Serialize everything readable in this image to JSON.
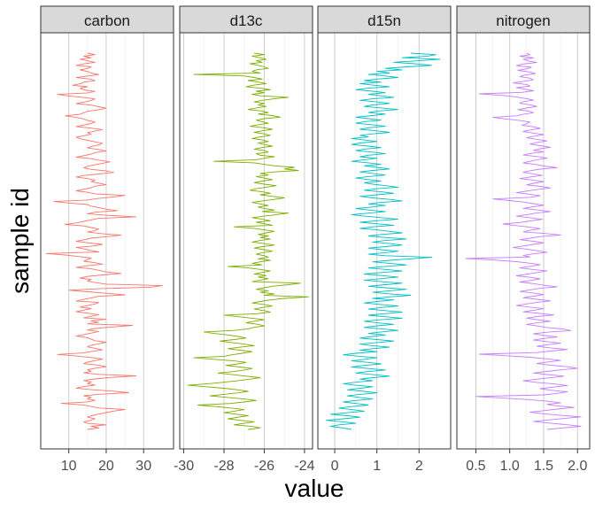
{
  "chart_data": {
    "type": "line",
    "xlabel": "value",
    "ylabel": "sample id",
    "orientation": "vertical profile (value on x, sample id on y)",
    "facets": [
      {
        "name": "carbon",
        "color": "#F8766D",
        "xlim": [
          2.5,
          38
        ],
        "ticks": [
          10,
          20,
          30
        ],
        "tick_labels": [
          "10",
          "20",
          "30"
        ],
        "values": [
          15,
          17,
          14,
          16,
          13,
          15,
          17,
          14,
          12,
          16,
          15,
          13,
          15,
          16,
          18,
          15,
          12,
          16,
          17,
          14,
          13,
          11,
          15,
          13,
          14,
          17,
          15,
          7,
          10,
          14,
          17,
          16,
          14,
          12,
          16,
          18,
          20,
          18,
          15,
          14,
          13,
          9,
          12,
          14,
          15,
          17,
          16,
          14,
          12,
          16,
          19,
          17,
          15,
          16,
          14,
          12,
          13,
          15,
          17,
          19,
          18,
          16,
          15,
          18,
          20,
          17,
          16,
          14,
          12,
          16,
          18,
          21,
          19,
          17,
          15,
          14,
          16,
          20,
          22,
          18,
          14,
          12,
          15,
          17,
          16,
          18,
          20,
          17,
          16,
          14,
          12,
          15,
          17,
          25,
          22,
          18,
          15,
          6,
          10,
          15,
          16,
          18,
          20,
          23,
          17,
          15,
          20,
          28,
          18,
          16,
          14,
          12,
          9,
          14,
          16,
          18,
          17,
          15,
          19,
          24,
          20,
          16,
          14,
          12,
          15,
          19,
          17,
          12,
          14,
          16,
          18,
          4,
          9,
          13,
          16,
          15,
          14,
          17,
          19,
          15,
          12,
          16,
          18,
          20,
          24,
          19,
          15,
          13,
          16,
          15,
          17,
          20,
          35,
          32,
          18,
          10,
          15,
          20,
          25,
          18,
          16,
          14,
          12,
          18,
          17,
          15,
          13,
          16,
          14,
          12,
          15,
          18,
          16,
          14,
          20,
          16,
          18,
          15,
          27,
          22,
          17,
          15,
          18,
          16,
          14,
          12,
          15,
          16,
          17,
          20,
          18,
          16,
          15,
          17,
          19,
          16,
          14,
          7,
          12,
          16,
          19,
          17,
          15,
          14,
          18,
          20,
          17,
          15,
          16,
          14,
          18,
          28,
          21,
          17,
          14,
          16,
          15,
          17,
          14,
          12,
          16,
          22,
          26,
          18,
          14,
          16,
          15,
          17,
          15,
          8,
          14,
          16,
          18,
          25,
          22,
          20,
          18,
          16,
          15,
          17,
          16,
          14,
          15,
          20,
          16,
          18,
          15
        ]
      },
      {
        "name": "d13c",
        "color": "#7CAE00",
        "xlim": [
          -30.2,
          -23.6
        ],
        "ticks": [
          -30,
          -28,
          -26,
          -24
        ],
        "tick_labels": [
          "-30",
          "-28",
          "-26",
          "-24"
        ],
        "values": [
          -26.5,
          -26.0,
          -26.6,
          -26.2,
          -25.9,
          -26.4,
          -26.1,
          -26.7,
          -26.3,
          -26.0,
          -25.8,
          -26.4,
          -26.6,
          -26.2,
          -29.5,
          -27.0,
          -26.5,
          -26.1,
          -26.8,
          -26.3,
          -25.9,
          -26.5,
          -26.9,
          -26.2,
          -25.7,
          -26.4,
          -26.0,
          -26.6,
          -26.2,
          -24.8,
          -25.5,
          -26.1,
          -26.5,
          -26.0,
          -26.3,
          -25.9,
          -26.4,
          -26.8,
          -26.1,
          -25.8,
          -26.3,
          -25.6,
          -25.2,
          -26.0,
          -26.4,
          -26.1,
          -25.8,
          -26.3,
          -26.7,
          -26.0,
          -25.6,
          -26.1,
          -26.5,
          -26.0,
          -25.7,
          -26.2,
          -26.6,
          -26.1,
          -25.8,
          -26.3,
          -26.0,
          -25.6,
          -26.1,
          -26.5,
          -26.0,
          -25.8,
          -26.4,
          -26.2,
          -25.5,
          -26.0,
          -26.4,
          -28.5,
          -26.5,
          -26.0,
          -25.5,
          -24.5,
          -25.0,
          -24.3,
          -25.5,
          -26.2,
          -25.8,
          -26.4,
          -26.0,
          -25.6,
          -26.1,
          -26.5,
          -26.0,
          -25.4,
          -25.9,
          -26.4,
          -26.7,
          -26.1,
          -25.7,
          -26.2,
          -25.6,
          -25.0,
          -25.5,
          -26.1,
          -26.6,
          -26.2,
          -25.8,
          -26.3,
          -26.0,
          -25.5,
          -26.1,
          -24.8,
          -25.4,
          -26.0,
          -26.6,
          -26.1,
          -25.7,
          -26.4,
          -26.0,
          -25.6,
          -27.5,
          -26.5,
          -26.0,
          -25.5,
          -25.9,
          -26.3,
          -25.8,
          -26.2,
          -25.7,
          -26.2,
          -26.6,
          -26.0,
          -25.5,
          -26.1,
          -26.5,
          -26.0,
          -25.6,
          -26.1,
          -26.4,
          -26.0,
          -25.8,
          -26.3,
          -25.7,
          -26.2,
          -26.6,
          -26.1,
          -27.8,
          -26.8,
          -26.2,
          -25.7,
          -26.1,
          -26.5,
          -25.9,
          -26.3,
          -25.8,
          -26.2,
          -26.6,
          -24.2,
          -24.8,
          -25.6,
          -26.0,
          -26.4,
          -25.8,
          -26.2,
          -25.5,
          -26.0,
          -23.8,
          -25.0,
          -25.7,
          -26.2,
          -26.6,
          -26.0,
          -25.6,
          -26.1,
          -26.5,
          -26.0,
          -25.7,
          -26.3,
          -28.0,
          -27.3,
          -26.6,
          -26.0,
          -26.5,
          -26.9,
          -26.3,
          -26.0,
          -26.5,
          -26.8,
          -27.5,
          -29.0,
          -28.5,
          -27.8,
          -27.3,
          -26.9,
          -27.5,
          -28.2,
          -27.6,
          -27.0,
          -26.5,
          -27.2,
          -27.8,
          -27.2,
          -26.6,
          -27.1,
          -27.6,
          -28.0,
          -29.5,
          -28.4,
          -27.5,
          -26.9,
          -27.3,
          -27.9,
          -27.2,
          -26.6,
          -27.0,
          -27.5,
          -28.3,
          -27.6,
          -26.9,
          -26.2,
          -26.7,
          -27.3,
          -28.0,
          -28.8,
          -29.8,
          -28.9,
          -28.0,
          -27.3,
          -26.8,
          -27.3,
          -28.0,
          -28.7,
          -27.8,
          -27.0,
          -26.4,
          -27.0,
          -27.7,
          -29.3,
          -28.4,
          -27.6,
          -27.0,
          -27.5,
          -28.0,
          -27.4,
          -26.8,
          -27.3,
          -27.8,
          -27.2,
          -26.5,
          -27.0,
          -27.5,
          -26.6,
          -26.2,
          -26.8
        ]
      },
      {
        "name": "d15n",
        "color": "#00BFC4",
        "xlim": [
          -0.4,
          2.75
        ],
        "ticks": [
          0,
          1,
          2
        ],
        "tick_labels": [
          "0",
          "1",
          "2"
        ],
        "values": [
          1.8,
          2.4,
          2.2,
          1.6,
          2.5,
          2.0,
          1.4,
          1.9,
          2.3,
          1.7,
          1.2,
          1.6,
          1.0,
          1.3,
          0.8,
          1.2,
          1.5,
          1.0,
          0.7,
          1.1,
          0.6,
          0.9,
          1.3,
          0.8,
          0.5,
          0.9,
          1.2,
          0.8,
          1.1,
          1.4,
          0.9,
          0.6,
          1.0,
          1.3,
          0.9,
          0.7,
          1.1,
          1.5,
          1.0,
          0.8,
          1.2,
          0.9,
          0.5,
          0.8,
          1.1,
          0.7,
          0.5,
          0.9,
          1.2,
          0.8,
          0.6,
          1.0,
          1.3,
          0.9,
          0.6,
          0.8,
          0.4,
          0.7,
          1.0,
          0.6,
          0.4,
          0.8,
          1.1,
          0.7,
          0.5,
          0.9,
          1.2,
          0.8,
          0.6,
          1.0,
          0.7,
          0.4,
          0.8,
          1.1,
          0.7,
          1.0,
          1.3,
          0.9,
          0.6,
          0.9,
          1.2,
          0.8,
          0.5,
          0.8,
          1.1,
          0.7,
          0.9,
          1.2,
          1.5,
          1.0,
          0.7,
          1.1,
          1.4,
          1.0,
          0.6,
          0.9,
          1.3,
          1.6,
          1.1,
          0.8,
          1.2,
          0.9,
          0.5,
          0.8,
          1.2,
          0.8,
          0.4,
          0.7,
          1.1,
          1.5,
          1.0,
          0.6,
          1.0,
          1.4,
          0.9,
          0.6,
          1.0,
          1.3,
          1.6,
          1.1,
          0.8,
          1.2,
          1.7,
          1.2,
          0.9,
          1.3,
          1.6,
          1.2,
          0.8,
          1.1,
          1.5,
          1.2,
          0.8,
          1.2,
          2.3,
          1.8,
          1.3,
          0.9,
          1.3,
          1.7,
          1.2,
          0.8,
          1.2,
          1.6,
          1.1,
          0.7,
          1.1,
          1.5,
          1.1,
          0.7,
          1.1,
          1.6,
          1.2,
          0.8,
          1.2,
          1.7,
          1.3,
          0.9,
          1.3,
          1.8,
          1.3,
          0.9,
          1.4,
          1.0,
          0.7,
          1.1,
          1.5,
          1.1,
          0.8,
          1.2,
          1.6,
          1.2,
          0.8,
          1.2,
          1.6,
          1.1,
          0.7,
          1.0,
          1.4,
          1.0,
          0.7,
          1.1,
          1.5,
          1.1,
          0.8,
          1.2,
          0.9,
          0.6,
          1.0,
          1.4,
          1.0,
          0.6,
          0.9,
          1.3,
          0.9,
          0.6,
          1.0,
          0.5,
          0.2,
          0.6,
          1.0,
          0.7,
          0.4,
          0.8,
          1.1,
          0.7,
          0.4,
          0.8,
          1.2,
          0.8,
          0.5,
          0.9,
          1.3,
          0.9,
          0.6,
          0.9,
          0.5,
          0.2,
          0.5,
          0.9,
          0.6,
          0.3,
          0.7,
          1.0,
          0.6,
          0.3,
          0.6,
          0.9,
          0.5,
          0.2,
          0.5,
          0.8,
          0.4,
          0.1,
          0.4,
          0.7,
          0.3,
          -0.1,
          0.3,
          0.6,
          0.2,
          -0.2,
          0.2,
          0.5,
          0.1,
          -0.1,
          0.2,
          0.4
        ]
      },
      {
        "name": "nitrogen",
        "color": "#C77CFF",
        "xlim": [
          0.22,
          2.18
        ],
        "ticks": [
          0.5,
          1.0,
          1.5,
          2.0
        ],
        "tick_labels": [
          "0.5",
          "1.0",
          "1.5",
          "2.0"
        ],
        "values": [
          1.25,
          1.3,
          1.15,
          1.35,
          1.2,
          1.28,
          1.4,
          1.18,
          1.1,
          1.32,
          1.25,
          1.12,
          1.3,
          1.38,
          1.22,
          1.15,
          1.3,
          1.35,
          1.2,
          1.05,
          1.25,
          1.3,
          1.1,
          1.22,
          1.35,
          1.18,
          0.55,
          0.9,
          1.1,
          1.25,
          1.35,
          1.2,
          1.15,
          1.3,
          1.4,
          1.25,
          1.12,
          1.28,
          1.35,
          1.2,
          1.1,
          0.75,
          0.95,
          1.15,
          1.3,
          1.25,
          1.18,
          1.35,
          1.45,
          1.3,
          1.2,
          1.35,
          1.5,
          1.35,
          1.25,
          1.4,
          1.55,
          1.4,
          1.3,
          1.45,
          1.6,
          1.45,
          1.35,
          1.5,
          1.3,
          1.2,
          1.42,
          1.55,
          1.4,
          1.3,
          1.2,
          1.38,
          1.5,
          1.7,
          1.45,
          1.3,
          1.2,
          1.35,
          1.48,
          1.3,
          1.15,
          1.35,
          1.5,
          1.35,
          1.25,
          1.45,
          1.6,
          1.4,
          1.25,
          1.1,
          1.3,
          1.45,
          1.3,
          0.75,
          1.0,
          1.2,
          1.35,
          1.5,
          1.35,
          1.2,
          1.4,
          1.6,
          1.4,
          1.25,
          1.1,
          1.3,
          1.48,
          1.3,
          1.15,
          0.9,
          1.1,
          1.3,
          1.45,
          1.3,
          1.2,
          1.5,
          1.75,
          1.45,
          1.3,
          1.15,
          1.35,
          1.5,
          1.35,
          1.2,
          1.05,
          1.25,
          1.4,
          1.55,
          1.35,
          1.2,
          1.3,
          0.35,
          0.8,
          1.1,
          1.3,
          1.45,
          1.3,
          1.15,
          1.35,
          1.55,
          1.4,
          1.25,
          1.1,
          1.3,
          1.45,
          1.3,
          1.15,
          1.35,
          1.5,
          1.7,
          1.45,
          1.3,
          1.15,
          1.35,
          1.5,
          1.35,
          1.2,
          1.4,
          1.6,
          1.4,
          1.25,
          1.1,
          1.3,
          1.5,
          1.35,
          1.2,
          1.45,
          1.65,
          1.4,
          1.25,
          1.4,
          1.6,
          1.4,
          1.25,
          1.4,
          1.55,
          1.8,
          1.9,
          1.55,
          1.35,
          1.5,
          1.7,
          1.5,
          1.35,
          1.55,
          1.75,
          1.55,
          1.4,
          1.6,
          1.85,
          1.6,
          1.4,
          0.55,
          0.95,
          1.3,
          1.55,
          1.75,
          1.55,
          1.4,
          1.6,
          1.85,
          2.0,
          1.75,
          1.55,
          1.35,
          1.55,
          1.8,
          1.6,
          1.4,
          1.2,
          1.4,
          1.65,
          1.85,
          1.65,
          1.45,
          1.6,
          1.85,
          1.7,
          1.5,
          0.5,
          0.9,
          1.3,
          1.55,
          1.75,
          1.55,
          1.7,
          1.95,
          1.7,
          1.5,
          1.3,
          1.5,
          1.75,
          2.05,
          1.8,
          1.55,
          1.35,
          1.6,
          1.85,
          2.05,
          1.8,
          1.55
        ]
      }
    ]
  }
}
